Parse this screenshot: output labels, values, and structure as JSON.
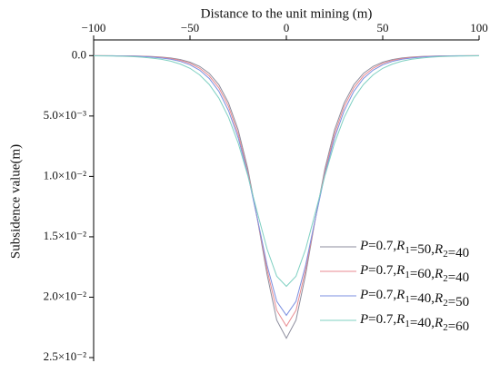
{
  "chart_data": {
    "type": "line",
    "x_axis_label": "Distance to the unit mining (m)",
    "y_axis_label": "Subsidence value(m)",
    "x_axis_position": "top",
    "y_inverted": true,
    "legend_position": "lower right",
    "grid": false,
    "xlim": [
      -100,
      100
    ],
    "xticks": [
      {
        "value": -100,
        "label": "−100"
      },
      {
        "value": -50,
        "label": "−50"
      },
      0,
      50,
      100
    ],
    "ylim": [
      -0.0013,
      0.0253
    ],
    "yticks": [
      {
        "value": 0,
        "label": "0.0"
      },
      {
        "value": 0.005,
        "label": "5.0×10⁻³"
      },
      {
        "value": 0.01,
        "label": "1.0×10⁻²"
      },
      {
        "value": 0.015,
        "label": "1.5×10⁻²"
      },
      {
        "value": 0.02,
        "label": "2.0×10⁻²"
      },
      {
        "value": 0.025,
        "label": "2.5×10⁻²"
      }
    ],
    "x": [
      -100,
      -95,
      -90,
      -85,
      -80,
      -75,
      -70,
      -65,
      -60,
      -55,
      -50,
      -45,
      -40,
      -35,
      -30,
      -25,
      -20,
      -15,
      -10,
      -5,
      0,
      5,
      10,
      15,
      20,
      25,
      30,
      35,
      40,
      45,
      50,
      55,
      60,
      65,
      70,
      75,
      80,
      85,
      90,
      95,
      100
    ],
    "series": [
      {
        "name": "P=0.7,R1=50,R2=40",
        "color": "#8c8c9c",
        "values": [
          3e-06,
          5e-06,
          9e-06,
          1.5e-05,
          2.5e-05,
          4.1e-05,
          6.9e-05,
          0.000115,
          0.00019,
          0.00032,
          0.00054,
          0.00089,
          0.00147,
          0.00241,
          0.00392,
          0.00615,
          0.00937,
          0.01355,
          0.01813,
          0.0219,
          0.0234,
          0.0219,
          0.01813,
          0.01355,
          0.00937,
          0.00615,
          0.00392,
          0.00241,
          0.00147,
          0.00089,
          0.00054,
          0.00032,
          0.00019,
          0.000115,
          6.9e-05,
          4.1e-05,
          2.5e-05,
          1.5e-05,
          9e-06,
          5e-06,
          3e-06
        ]
      },
      {
        "name": "P=0.7,R1=60,R2=40",
        "color": "#e98a90",
        "values": [
          5e-06,
          8e-06,
          1.3e-05,
          2.1e-05,
          3.4e-05,
          5.5e-05,
          9e-05,
          0.00015,
          0.00024,
          0.00039,
          0.00064,
          0.00104,
          0.00168,
          0.00267,
          0.00421,
          0.00649,
          0.00963,
          0.01355,
          0.01773,
          0.02109,
          0.0224,
          0.02109,
          0.01773,
          0.01355,
          0.00963,
          0.00649,
          0.00421,
          0.00267,
          0.00168,
          0.00104,
          0.00064,
          0.00039,
          0.00024,
          0.00015,
          9e-05,
          5.5e-05,
          3.4e-05,
          2.1e-05,
          1.3e-05,
          8e-06,
          5e-06
        ]
      },
      {
        "name": "P=0.7,R1=40,R2=50",
        "color": "#7b8fe0",
        "values": [
          7e-06,
          1.1e-05,
          1.8e-05,
          2.8e-05,
          4.5e-05,
          7.3e-05,
          0.000116,
          0.00019,
          0.0003,
          0.00048,
          0.00076,
          0.0012,
          0.00189,
          0.00296,
          0.00456,
          0.0068,
          0.00983,
          0.01352,
          0.01735,
          0.02034,
          0.0215,
          0.02034,
          0.01735,
          0.01352,
          0.00983,
          0.0068,
          0.00456,
          0.00296,
          0.00189,
          0.0012,
          0.00076,
          0.00048,
          0.0003,
          0.00019,
          0.000116,
          7.3e-05,
          4.5e-05,
          2.8e-05,
          1.8e-05,
          1.1e-05,
          7e-06
        ]
      },
      {
        "name": "P=0.7,R1=40,R2=60",
        "color": "#7fd0c2",
        "values": [
          1.5e-05,
          2.3e-05,
          3.6e-05,
          5.5e-05,
          8.4e-05,
          0.000129,
          0.0002,
          0.0003,
          0.00046,
          0.0007,
          0.00105,
          0.00159,
          0.00239,
          0.00352,
          0.00511,
          0.00724,
          0.00994,
          0.01302,
          0.01602,
          0.01826,
          0.0191,
          0.01826,
          0.01602,
          0.01302,
          0.00994,
          0.00724,
          0.00511,
          0.00352,
          0.00239,
          0.00159,
          0.00105,
          0.0007,
          0.00046,
          0.0003,
          0.0002,
          0.000129,
          8.4e-05,
          5.5e-05,
          3.6e-05,
          2.3e-05,
          1.5e-05
        ]
      }
    ]
  }
}
